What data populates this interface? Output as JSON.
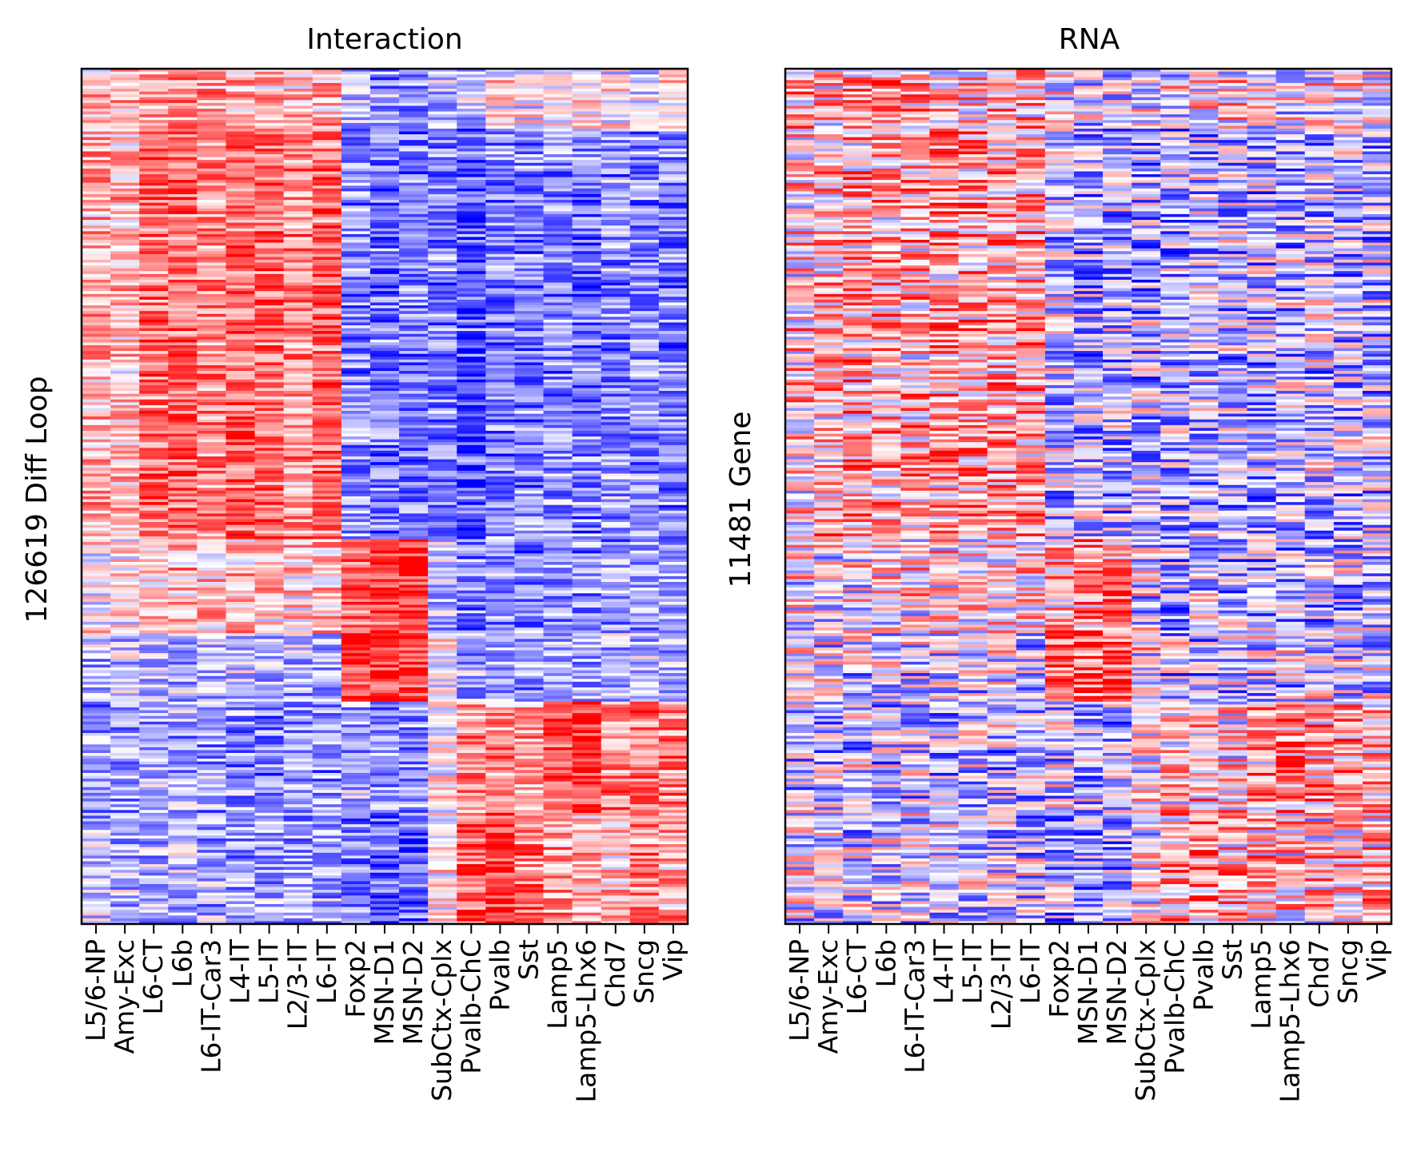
{
  "colors": {
    "low": "#0000ff",
    "mid": "#ffffff",
    "high": "#ff0000",
    "colormap": "bwr"
  },
  "chart_data": [
    {
      "type": "heatmap",
      "title": "Interaction",
      "ylabel": "126619 Diff Loop",
      "xlabel": "",
      "categories": [
        "L5/6-NP",
        "Amy-Exc",
        "L6-CT",
        "L6b",
        "L6-IT-Car3",
        "L4-IT",
        "L5-IT",
        "L2/3-IT",
        "L6-IT",
        "Foxp2",
        "MSN-D1",
        "MSN-D2",
        "SubCtx-Cplx",
        "Pvalb-ChC",
        "Pvalb",
        "Sst",
        "Lamp5",
        "Lamp5-Lhx6",
        "Chd7",
        "Sncg",
        "Vip"
      ],
      "ylim": [
        0,
        126619
      ],
      "y_ticks": false,
      "grid": false,
      "value_range": [
        -1,
        1
      ],
      "blocks": [
        {
          "rows": [
            0,
            0.07
          ],
          "profile": [
            0.25,
            0.3,
            0.3,
            0.5,
            0.45,
            0.3,
            0.3,
            0.2,
            0.3,
            -0.3,
            -0.4,
            -0.45,
            -0.3,
            -0.2,
            0.1,
            0.0,
            -0.1,
            0.0,
            0.0,
            -0.1,
            0.05
          ]
        },
        {
          "rows": [
            0.07,
            0.55
          ],
          "profile": [
            0.3,
            0.25,
            0.55,
            0.55,
            0.45,
            0.6,
            0.6,
            0.45,
            0.6,
            -0.45,
            -0.55,
            -0.55,
            -0.5,
            -0.65,
            -0.5,
            -0.5,
            -0.45,
            -0.5,
            -0.45,
            -0.45,
            -0.5
          ]
        },
        {
          "rows": [
            0.55,
            0.66
          ],
          "profile": [
            0.05,
            0.1,
            0.2,
            0.3,
            0.2,
            0.25,
            0.2,
            0.15,
            0.2,
            0.55,
            0.75,
            0.8,
            -0.2,
            -0.5,
            -0.4,
            -0.5,
            -0.4,
            -0.45,
            -0.4,
            -0.3,
            -0.35
          ]
        },
        {
          "rows": [
            0.66,
            0.74
          ],
          "profile": [
            -0.3,
            -0.2,
            -0.2,
            -0.3,
            -0.3,
            -0.3,
            -0.3,
            -0.3,
            -0.3,
            0.75,
            0.85,
            0.85,
            0.1,
            -0.35,
            -0.35,
            -0.4,
            -0.3,
            -0.35,
            -0.3,
            -0.25,
            -0.3
          ]
        },
        {
          "rows": [
            0.74,
            0.87
          ],
          "profile": [
            -0.4,
            -0.35,
            -0.35,
            -0.4,
            -0.4,
            -0.45,
            -0.45,
            -0.45,
            -0.45,
            -0.3,
            -0.45,
            -0.45,
            0.1,
            0.45,
            0.45,
            0.35,
            0.7,
            0.8,
            0.5,
            0.55,
            0.5
          ]
        },
        {
          "rows": [
            0.87,
            1.0
          ],
          "profile": [
            -0.25,
            -0.25,
            -0.3,
            -0.3,
            -0.35,
            -0.35,
            -0.35,
            -0.35,
            -0.35,
            -0.5,
            -0.6,
            -0.65,
            0.05,
            0.65,
            0.85,
            0.5,
            0.35,
            0.3,
            0.25,
            0.55,
            0.35
          ]
        }
      ]
    },
    {
      "type": "heatmap",
      "title": "RNA",
      "ylabel": "11481 Gene",
      "xlabel": "",
      "categories": [
        "L5/6-NP",
        "Amy-Exc",
        "L6-CT",
        "L6b",
        "L6-IT-Car3",
        "L4-IT",
        "L5-IT",
        "L2/3-IT",
        "L6-IT",
        "Foxp2",
        "MSN-D1",
        "MSN-D2",
        "SubCtx-Cplx",
        "Pvalb-ChC",
        "Pvalb",
        "Sst",
        "Lamp5",
        "Lamp5-Lhx6",
        "Chd7",
        "Sncg",
        "Vip"
      ],
      "ylim": [
        0,
        11481
      ],
      "y_ticks": false,
      "grid": false,
      "value_range": [
        -1,
        1
      ],
      "blocks": [
        {
          "rows": [
            0,
            0.07
          ],
          "profile": [
            0.25,
            0.2,
            0.25,
            0.4,
            0.3,
            0.2,
            0.2,
            0.2,
            0.25,
            -0.1,
            -0.15,
            -0.15,
            -0.1,
            0.0,
            0.1,
            0.1,
            0.0,
            0.0,
            0.0,
            0.0,
            0.0
          ]
        },
        {
          "rows": [
            0.07,
            0.55
          ],
          "profile": [
            0.15,
            0.2,
            0.3,
            0.3,
            0.25,
            0.35,
            0.35,
            0.3,
            0.35,
            -0.2,
            -0.3,
            -0.3,
            -0.3,
            -0.3,
            -0.25,
            -0.25,
            -0.25,
            -0.25,
            -0.2,
            -0.25,
            -0.25
          ]
        },
        {
          "rows": [
            0.55,
            0.66
          ],
          "profile": [
            0.0,
            0.05,
            0.1,
            0.1,
            0.1,
            0.1,
            0.1,
            0.1,
            0.1,
            0.3,
            0.45,
            0.45,
            -0.1,
            -0.3,
            -0.25,
            -0.25,
            -0.25,
            -0.25,
            -0.2,
            -0.2,
            -0.2
          ]
        },
        {
          "rows": [
            0.66,
            0.74
          ],
          "profile": [
            -0.15,
            -0.1,
            -0.1,
            -0.15,
            -0.15,
            -0.15,
            -0.15,
            -0.15,
            -0.15,
            0.5,
            0.7,
            0.7,
            0.05,
            -0.2,
            -0.2,
            -0.2,
            -0.15,
            -0.15,
            -0.15,
            -0.15,
            -0.15
          ]
        },
        {
          "rows": [
            0.74,
            0.87
          ],
          "profile": [
            -0.2,
            -0.2,
            -0.2,
            -0.2,
            -0.2,
            -0.25,
            -0.25,
            -0.25,
            -0.25,
            -0.15,
            -0.25,
            -0.25,
            0.05,
            0.2,
            0.2,
            0.15,
            0.4,
            0.45,
            0.3,
            0.3,
            0.3
          ]
        },
        {
          "rows": [
            0.87,
            1.0
          ],
          "profile": [
            -0.1,
            -0.1,
            -0.15,
            -0.15,
            -0.15,
            -0.2,
            -0.2,
            -0.2,
            -0.2,
            -0.3,
            -0.35,
            -0.35,
            0.0,
            0.35,
            0.4,
            0.25,
            0.2,
            0.15,
            0.15,
            0.25,
            0.2
          ]
        }
      ]
    }
  ]
}
